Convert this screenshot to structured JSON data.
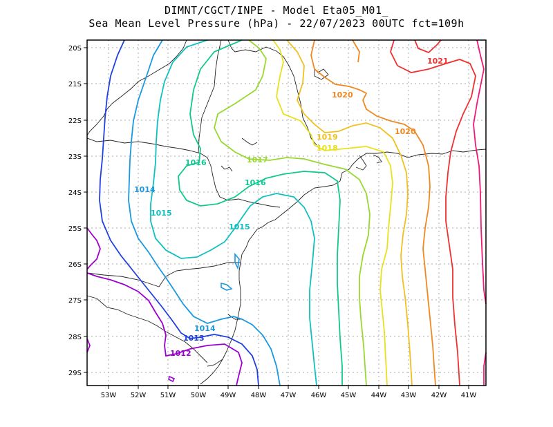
{
  "title": {
    "line1": "DIMNT/CGCT/INPE -  Model Eta05_M01_",
    "line2": "Sea Mean Level Pressure (hPa) - 22/07/2023 00UTC fct=109h"
  },
  "axes": {
    "lon_labels": [
      "53W",
      "52W",
      "51W",
      "50W",
      "49W",
      "48W",
      "47W",
      "46W",
      "45W",
      "44W",
      "43W",
      "42W",
      "41W"
    ],
    "lat_labels": [
      "20S",
      "21S",
      "22S",
      "23S",
      "24S",
      "25S",
      "26S",
      "27S",
      "28S",
      "29S"
    ]
  },
  "contour_labels": [
    {
      "text": "1012",
      "color": "#9a00d0"
    },
    {
      "text": "1013",
      "color": "#2040e0"
    },
    {
      "text": "1014",
      "color": "#1a98e0"
    },
    {
      "text": "1014",
      "color": "#1a98e0"
    },
    {
      "text": "1015",
      "color": "#10c0c0"
    },
    {
      "text": "1015",
      "color": "#10c0c0"
    },
    {
      "text": "1016",
      "color": "#10c890"
    },
    {
      "text": "1016",
      "color": "#10c890"
    },
    {
      "text": "1017",
      "color": "#98d830"
    },
    {
      "text": "1018",
      "color": "#e8e020"
    },
    {
      "text": "1019",
      "color": "#f0c020"
    },
    {
      "text": "1020",
      "color": "#f08820"
    },
    {
      "text": "1020",
      "color": "#f08820"
    },
    {
      "text": "1021",
      "color": "#f03030"
    }
  ],
  "colors": {
    "c1011": "#a000c8",
    "c1012": "#9a00d0",
    "c1013": "#2040e0",
    "c1014": "#1a98e0",
    "c1015": "#10c0c0",
    "c1016": "#10c890",
    "c1017": "#98d830",
    "c1018": "#e8e020",
    "c1019": "#f0c020",
    "c1020": "#f08820",
    "c1021": "#f03030",
    "c1022": "#f01878"
  }
}
